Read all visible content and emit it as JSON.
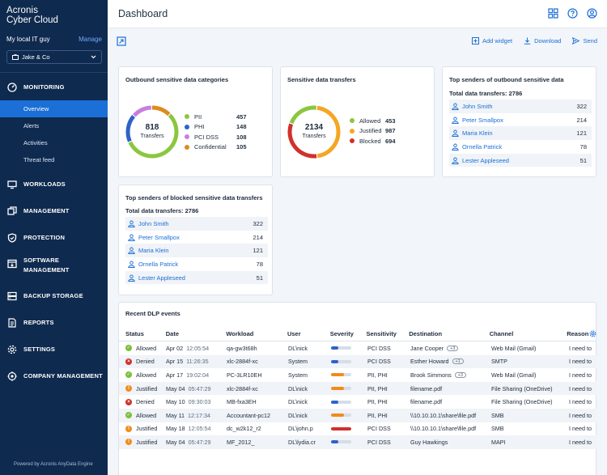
{
  "brand": {
    "line1": "Acronis",
    "line2": "Cyber Cloud"
  },
  "tenant": {
    "name": "My local IT guy",
    "manage": "Manage",
    "selected": "Jake & Co"
  },
  "nav": {
    "monitoring": "MONITORING",
    "overview": "Overview",
    "alerts": "Alerts",
    "activities": "Activities",
    "threat_feed": "Threat feed",
    "workloads": "WORKLOADS",
    "management": "MANAGEMENT",
    "protection": "PROTECTION",
    "software1": "SOFTWARE",
    "software2": "MANAGEMENT",
    "backup": "BACKUP STORAGE",
    "reports": "REPORTS",
    "settings": "SETTINGS",
    "company": "COMPANY MANAGEMENT"
  },
  "powered": "Powered by Acronis AnyData Engine",
  "header": {
    "title": "Dashboard"
  },
  "toolbar": {
    "add_widget": "Add widget",
    "download": "Download",
    "send": "Send"
  },
  "outbound": {
    "title": "Outbound sensitive data categories",
    "total": "818",
    "total_label": "Transfers",
    "items": [
      {
        "label": "PII",
        "value": "457",
        "color": "#8cc63f"
      },
      {
        "label": "PHI",
        "value": "148",
        "color": "#2f62c9"
      },
      {
        "label": "PCI DSS",
        "value": "108",
        "color": "#c97de0"
      },
      {
        "label": "Confidential",
        "value": "105",
        "color": "#e08a1e"
      }
    ]
  },
  "transfers": {
    "title": "Sensitive data transfers",
    "total": "2134",
    "total_label": "Transfers",
    "items": [
      {
        "label": "Allowed",
        "value": "453",
        "color": "#8cc63f"
      },
      {
        "label": "Justified",
        "value": "987",
        "color": "#f5a623"
      },
      {
        "label": "Blocked",
        "value": "694",
        "color": "#d0312d"
      }
    ]
  },
  "top_outbound": {
    "title": "Top senders of outbound sensitive data",
    "total": "Total data transfers: 2786",
    "rows": [
      {
        "name": "John Smith",
        "count": "322"
      },
      {
        "name": "Peter Smallpox",
        "count": "214"
      },
      {
        "name": "Maria Klein",
        "count": "121"
      },
      {
        "name": "Ornella Patrick",
        "count": "78"
      },
      {
        "name": "Lester Appleseed",
        "count": "51"
      }
    ]
  },
  "top_blocked": {
    "title": "Top senders of blocked sensitive data transfers",
    "total": "Total data transfers: 2786",
    "rows": [
      {
        "name": "John Smith",
        "count": "322"
      },
      {
        "name": "Peter Smallpox",
        "count": "214"
      },
      {
        "name": "Maria Klein",
        "count": "121"
      },
      {
        "name": "Ornella Patrick",
        "count": "78"
      },
      {
        "name": "Lester Appleseed",
        "count": "51"
      }
    ]
  },
  "dlp": {
    "title": "Recent DLP events",
    "headers": {
      "status": "Status",
      "date": "Date",
      "workload": "Workload",
      "user": "User",
      "severity": "Severity",
      "sensitivity": "Sensitivity",
      "destination": "Destination",
      "channel": "Channel",
      "reason": "Reason"
    },
    "status_colors": {
      "Allowed": "#7bbf3a",
      "Denied": "#d0312d",
      "Justified": "#f08c1a"
    },
    "rows": [
      {
        "status": "Allowed",
        "date": "Apr 02",
        "time": "12:05:54",
        "workload": "qa-gw3t68h",
        "user": "DL\\nick",
        "severity": 0.35,
        "sev_color": "#2f62c9",
        "sensitivity": "PCI DSS",
        "destination": "Jane Cooper",
        "badge": "+3",
        "channel": "Web Mail (Gmail)",
        "reason": "I need to"
      },
      {
        "status": "Denied",
        "date": "Apr 15",
        "time": "11:26:35",
        "workload": "xlc-2884f-xc",
        "user": "System",
        "severity": 0.35,
        "sev_color": "#2f62c9",
        "sensitivity": "PCI DSS",
        "destination": "Esther Howard",
        "badge": "+1",
        "channel": "SMTP",
        "reason": "I need to"
      },
      {
        "status": "Allowed",
        "date": "Apr 17",
        "time": "19:02:04",
        "workload": "PC-3LR10EH",
        "user": "System",
        "severity": 0.65,
        "sev_color": "#f08c1a",
        "sensitivity": "PII, PHI",
        "destination": "Brook Simmons",
        "badge": "+3",
        "channel": "Web Mail (Gmail)",
        "reason": "I need to"
      },
      {
        "status": "Justified",
        "date": "May 04",
        "time": "05:47:29",
        "workload": "xlc-2884f-xc",
        "user": "DL\\nick",
        "severity": 0.65,
        "sev_color": "#f08c1a",
        "sensitivity": "PII, PHI",
        "destination": "filename.pdf",
        "badge": "",
        "channel": "File Sharing (OneDrive)",
        "reason": "I need to"
      },
      {
        "status": "Denied",
        "date": "May 10",
        "time": "09:30:03",
        "workload": "MB-fxa3EH",
        "user": "DL\\nick",
        "severity": 0.35,
        "sev_color": "#2f62c9",
        "sensitivity": "PII, PHI",
        "destination": "filename.pdf",
        "badge": "",
        "channel": "File Sharing (OneDrive)",
        "reason": "I need to"
      },
      {
        "status": "Allowed",
        "date": "May 11",
        "time": "12:17:34",
        "workload": "Accountant-pc12",
        "user": "DL\\nick",
        "severity": 0.65,
        "sev_color": "#f08c1a",
        "sensitivity": "PII, PHI",
        "destination": "\\\\10.10.10.1\\share\\file.pdf",
        "badge": "",
        "channel": "SMB",
        "reason": "I need to"
      },
      {
        "status": "Justified",
        "date": "May 18",
        "time": "12:05:54",
        "workload": "dc_w2k12_r2",
        "user": "DL\\john.p",
        "severity": 1.0,
        "sev_color": "#d0312d",
        "sensitivity": "PCI DSS",
        "destination": "\\\\10.10.10.1\\share\\file.pdf",
        "badge": "",
        "channel": "SMB",
        "reason": "I need to"
      },
      {
        "status": "Justified",
        "date": "May 04",
        "time": "05:47:29",
        "workload": "MF_2012_",
        "user": "DL\\lydia.cr",
        "severity": 0.35,
        "sev_color": "#2f62c9",
        "sensitivity": "PCI DSS",
        "destination": "Guy Hawkings",
        "badge": "",
        "channel": "MAPI",
        "reason": "I need to"
      }
    ]
  }
}
